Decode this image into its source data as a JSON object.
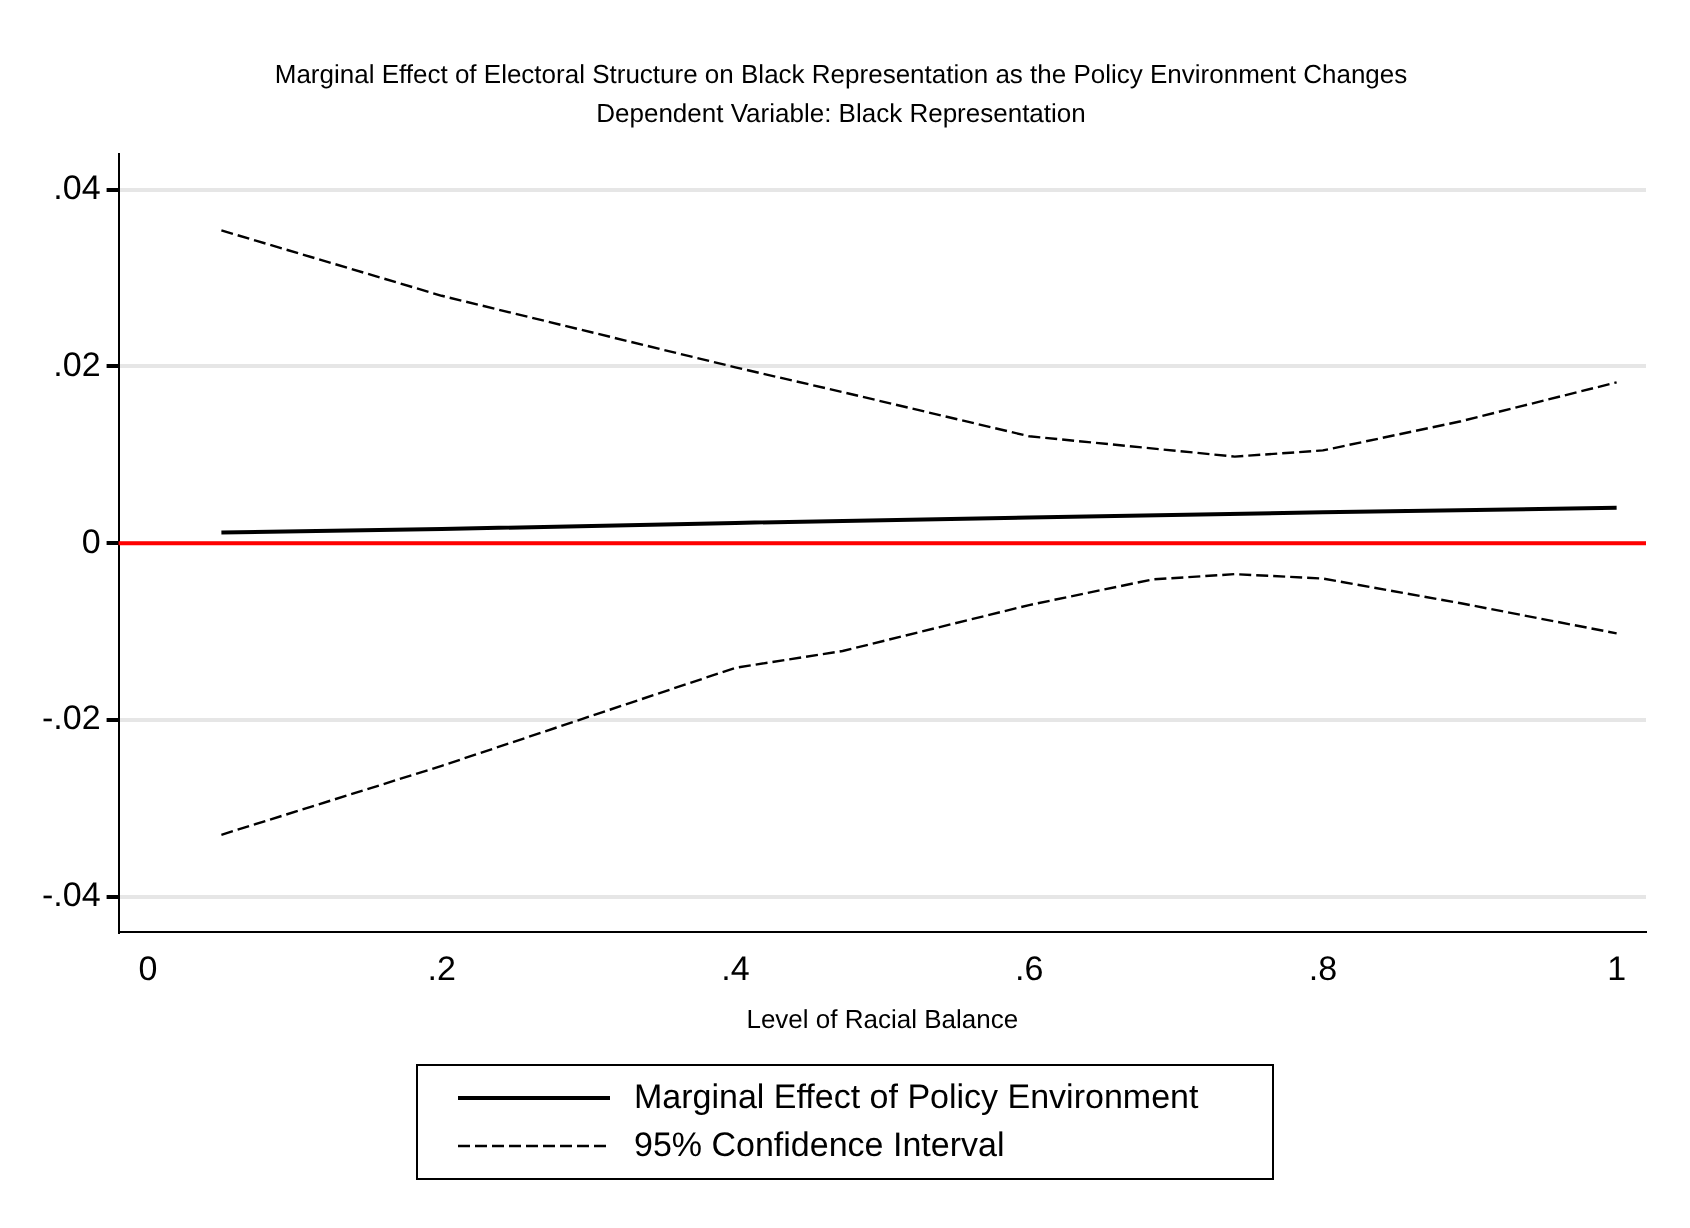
{
  "chart_data": {
    "type": "line",
    "title": "Marginal Effect of Electoral Structure on Black Representation as the Policy Environment Changes",
    "subtitle": "Dependent Variable: Black Representation",
    "xlabel": "Level of Racial Balance",
    "xlim": [
      -0.02,
      1.02
    ],
    "xticks": [
      0,
      {
        "value": 0.2,
        "label": ".2"
      },
      {
        "value": 0.4,
        "label": ".4"
      },
      {
        "value": 0.6,
        "label": ".6"
      },
      {
        "value": 0.8,
        "label": ".8"
      },
      1
    ],
    "ylim": [
      -0.044,
      0.044
    ],
    "yticks": [
      {
        "value": -0.04,
        "label": "-.04"
      },
      {
        "value": -0.02,
        "label": "-.02"
      },
      0,
      {
        "value": 0.02,
        "label": ".02"
      },
      {
        "value": 0.04,
        "label": ".04"
      }
    ],
    "grid": "y",
    "legend": "bottom",
    "marker": "none",
    "ref_lines": [
      {
        "axis": "y",
        "value": 0,
        "color": "#ff0000"
      }
    ],
    "series": [
      {
        "name": "Marginal Effect of Policy Environment",
        "color": "#000000",
        "line_style": "solid",
        "x": [
          0.05,
          0.2,
          0.4,
          0.6,
          0.8,
          1.0
        ],
        "values": [
          0.0012,
          0.0016,
          0.0023,
          0.0029,
          0.0035,
          0.004
        ]
      },
      {
        "name": "95% Confidence Interval",
        "color": "#000000",
        "line_style": "dashed",
        "x": [
          0.05,
          0.2,
          0.4,
          0.473,
          0.6,
          0.74,
          0.8,
          0.894,
          1.0
        ],
        "values": [
          0.0354,
          0.028,
          0.0199,
          0.0171,
          0.0121,
          0.0098,
          0.0105,
          0.0138,
          0.0182
        ]
      },
      {
        "color": "#000000",
        "line_style": "dashed",
        "x": [
          0.05,
          0.2,
          0.4,
          0.473,
          0.6,
          0.684,
          0.74,
          0.8,
          0.894,
          1.0
        ],
        "values": [
          -0.033,
          -0.0252,
          -0.0141,
          -0.0122,
          -0.007,
          -0.0041,
          -0.0035,
          -0.004,
          -0.0068,
          -0.0102
        ]
      }
    ]
  }
}
